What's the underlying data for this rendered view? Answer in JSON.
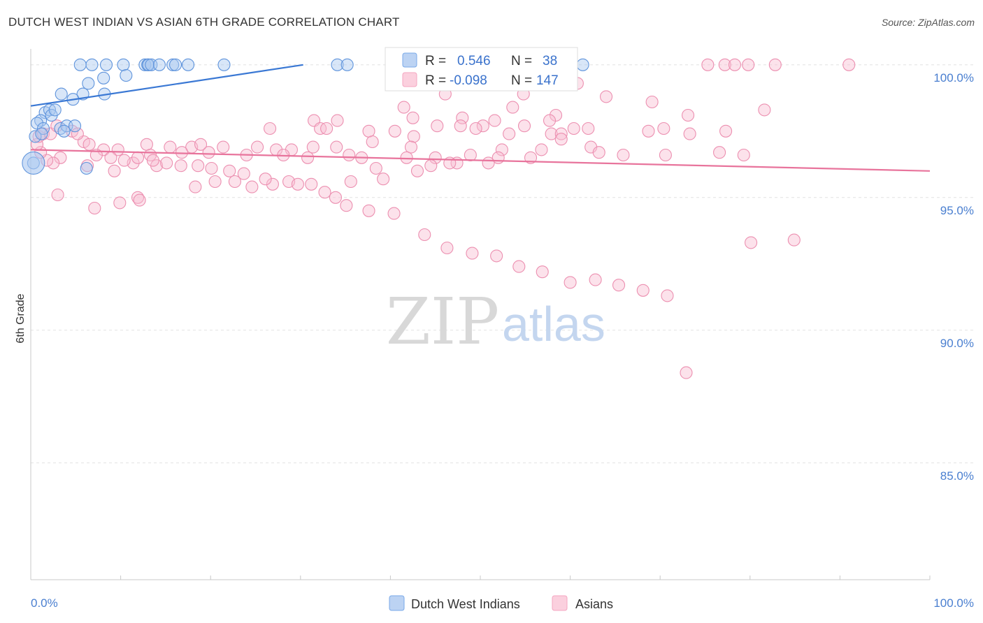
{
  "title": "DUTCH WEST INDIAN VS ASIAN 6TH GRADE CORRELATION CHART",
  "source": "Source: ZipAtlas.com",
  "chart_data": {
    "type": "scatter",
    "xlabel": "",
    "ylabel": "6th Grade",
    "xlim": [
      0,
      100
    ],
    "ylim": [
      80.6,
      100.6
    ],
    "x_tick_labels": [
      "0.0%",
      "100.0%"
    ],
    "y_ticks": [
      85,
      90,
      95,
      100
    ],
    "y_tick_labels": [
      "85.0%",
      "90.0%",
      "95.0%",
      "100.0%"
    ],
    "grid": true,
    "watermark": {
      "zip": "ZIP",
      "atlas": "atlas"
    },
    "legend": {
      "r_label": "R =",
      "n_label": "N =",
      "entries": [
        {
          "name": "Dutch West Indians",
          "r": "0.546",
          "n": "38",
          "color": "#7aaae8",
          "line_color": "#3a78d4",
          "text_color": "#3a72cc"
        },
        {
          "name": "Asians",
          "r": "-0.098",
          "n": "147",
          "color": "#f4a6c0",
          "line_color": "#e8749c",
          "text_color": "#3a72cc"
        }
      ]
    },
    "series": [
      {
        "name": "Dutch West Indians",
        "color": "#7aaae8",
        "trend": {
          "x0": 0,
          "y0": 98.45,
          "x1": 30.3,
          "y1": 100.0
        },
        "points": [
          [
            5.5,
            100
          ],
          [
            6.8,
            100
          ],
          [
            8.4,
            100
          ],
          [
            10.3,
            100
          ],
          [
            12.7,
            100
          ],
          [
            13.0,
            100
          ],
          [
            13.1,
            100
          ],
          [
            13.4,
            100
          ],
          [
            14.3,
            100
          ],
          [
            15.8,
            100
          ],
          [
            16.1,
            100
          ],
          [
            17.5,
            100
          ],
          [
            21.5,
            100
          ],
          [
            34.1,
            100
          ],
          [
            35.2,
            100
          ],
          [
            61.4,
            100
          ],
          [
            10.6,
            99.6
          ],
          [
            6.4,
            99.3
          ],
          [
            8.1,
            99.5
          ],
          [
            3.4,
            98.9
          ],
          [
            5.8,
            98.9
          ],
          [
            8.2,
            98.9
          ],
          [
            4.7,
            98.7
          ],
          [
            1.6,
            98.2
          ],
          [
            2.1,
            98.3
          ],
          [
            2.3,
            98.1
          ],
          [
            2.7,
            98.3
          ],
          [
            1.1,
            97.9
          ],
          [
            0.7,
            97.8
          ],
          [
            3.3,
            97.6
          ],
          [
            4.0,
            97.7
          ],
          [
            4.9,
            97.7
          ],
          [
            1.4,
            97.6
          ],
          [
            3.7,
            97.5
          ],
          [
            0.5,
            97.3
          ],
          [
            1.2,
            97.4
          ],
          [
            0.3,
            96.3
          ],
          [
            6.2,
            96.1
          ]
        ]
      },
      {
        "name": "Asians",
        "color": "#f4a6c0",
        "trend": {
          "x0": 0,
          "y0": 96.8,
          "x1": 100,
          "y1": 96.0
        },
        "points": [
          [
            75.3,
            100
          ],
          [
            77.2,
            100
          ],
          [
            78.3,
            100
          ],
          [
            79.8,
            100
          ],
          [
            82.8,
            100
          ],
          [
            91.0,
            100
          ],
          [
            60.8,
            99.3
          ],
          [
            54.8,
            98.9
          ],
          [
            46.1,
            98.9
          ],
          [
            64.0,
            98.8
          ],
          [
            69.1,
            98.6
          ],
          [
            81.6,
            98.3
          ],
          [
            41.5,
            98.4
          ],
          [
            53.6,
            98.4
          ],
          [
            73.1,
            98.1
          ],
          [
            51.6,
            97.9
          ],
          [
            58.4,
            98.1
          ],
          [
            48.0,
            98.0
          ],
          [
            42.5,
            98.0
          ],
          [
            57.7,
            97.9
          ],
          [
            34.1,
            97.9
          ],
          [
            31.5,
            97.9
          ],
          [
            47.8,
            97.7
          ],
          [
            45.2,
            97.7
          ],
          [
            62.0,
            97.6
          ],
          [
            50.3,
            97.7
          ],
          [
            70.4,
            97.6
          ],
          [
            68.7,
            97.5
          ],
          [
            54.9,
            97.7
          ],
          [
            77.3,
            97.5
          ],
          [
            53.2,
            97.4
          ],
          [
            57.9,
            97.4
          ],
          [
            59.0,
            97.4
          ],
          [
            60.4,
            97.6
          ],
          [
            73.3,
            97.4
          ],
          [
            59.0,
            97.2
          ],
          [
            32.2,
            97.6
          ],
          [
            26.6,
            97.6
          ],
          [
            32.9,
            97.6
          ],
          [
            49.5,
            97.6
          ],
          [
            37.6,
            97.5
          ],
          [
            40.5,
            97.5
          ],
          [
            42.6,
            97.3
          ],
          [
            38.0,
            97.1
          ],
          [
            62.3,
            96.9
          ],
          [
            52.4,
            96.8
          ],
          [
            56.8,
            96.8
          ],
          [
            63.2,
            96.7
          ],
          [
            65.9,
            96.6
          ],
          [
            70.6,
            96.6
          ],
          [
            76.6,
            96.7
          ],
          [
            79.3,
            96.6
          ],
          [
            52.0,
            96.5
          ],
          [
            55.6,
            96.5
          ],
          [
            42.3,
            96.9
          ],
          [
            34.0,
            96.9
          ],
          [
            31.4,
            96.9
          ],
          [
            29.0,
            96.8
          ],
          [
            27.3,
            96.8
          ],
          [
            24.0,
            96.6
          ],
          [
            19.8,
            96.7
          ],
          [
            17.9,
            96.9
          ],
          [
            15.5,
            96.9
          ],
          [
            12.9,
            97.0
          ],
          [
            8.1,
            96.8
          ],
          [
            5.9,
            97.1
          ],
          [
            9.7,
            96.8
          ],
          [
            13.3,
            96.6
          ],
          [
            16.8,
            96.7
          ],
          [
            18.9,
            97.0
          ],
          [
            21.4,
            96.9
          ],
          [
            25.2,
            96.9
          ],
          [
            28.1,
            96.6
          ],
          [
            30.8,
            96.5
          ],
          [
            35.4,
            96.6
          ],
          [
            36.8,
            96.5
          ],
          [
            41.8,
            96.5
          ],
          [
            45.0,
            96.5
          ],
          [
            48.9,
            96.6
          ],
          [
            50.9,
            96.3
          ],
          [
            47.4,
            96.3
          ],
          [
            46.6,
            96.3
          ],
          [
            44.5,
            96.2
          ],
          [
            43.0,
            96.0
          ],
          [
            38.4,
            96.1
          ],
          [
            39.2,
            95.7
          ],
          [
            35.6,
            95.6
          ],
          [
            31.2,
            95.5
          ],
          [
            28.7,
            95.6
          ],
          [
            26.9,
            95.5
          ],
          [
            24.6,
            95.4
          ],
          [
            22.7,
            95.6
          ],
          [
            20.5,
            95.6
          ],
          [
            18.3,
            95.4
          ],
          [
            14.0,
            96.2
          ],
          [
            11.4,
            96.3
          ],
          [
            9.3,
            96.0
          ],
          [
            6.3,
            96.2
          ],
          [
            3.3,
            96.5
          ],
          [
            2.5,
            96.3
          ],
          [
            1.8,
            96.4
          ],
          [
            1.1,
            96.7
          ],
          [
            0.7,
            97.0
          ],
          [
            0.9,
            97.3
          ],
          [
            1.4,
            97.4
          ],
          [
            2.2,
            97.4
          ],
          [
            2.9,
            97.7
          ],
          [
            4.6,
            97.5
          ],
          [
            5.2,
            97.4
          ],
          [
            6.5,
            97.0
          ],
          [
            7.3,
            96.6
          ],
          [
            8.9,
            96.5
          ],
          [
            10.4,
            96.4
          ],
          [
            11.9,
            96.5
          ],
          [
            13.6,
            96.4
          ],
          [
            15.1,
            96.3
          ],
          [
            16.7,
            96.2
          ],
          [
            18.6,
            96.2
          ],
          [
            20.1,
            96.1
          ],
          [
            22.1,
            96.0
          ],
          [
            23.7,
            95.9
          ],
          [
            26.1,
            95.7
          ],
          [
            29.7,
            95.5
          ],
          [
            32.7,
            95.2
          ],
          [
            33.9,
            95.0
          ],
          [
            35.1,
            94.7
          ],
          [
            37.6,
            94.5
          ],
          [
            40.4,
            94.4
          ],
          [
            43.8,
            93.6
          ],
          [
            46.3,
            93.1
          ],
          [
            49.1,
            92.9
          ],
          [
            51.8,
            92.8
          ],
          [
            54.3,
            92.4
          ],
          [
            56.9,
            92.2
          ],
          [
            60.0,
            91.8
          ],
          [
            62.8,
            91.9
          ],
          [
            65.4,
            91.7
          ],
          [
            68.1,
            91.5
          ],
          [
            70.8,
            91.3
          ],
          [
            72.9,
            88.4
          ],
          [
            84.9,
            93.4
          ],
          [
            80.1,
            93.3
          ],
          [
            11.9,
            95.0
          ],
          [
            7.1,
            94.6
          ],
          [
            12.1,
            94.9
          ],
          [
            3.0,
            95.1
          ],
          [
            9.9,
            94.8
          ]
        ]
      }
    ]
  }
}
